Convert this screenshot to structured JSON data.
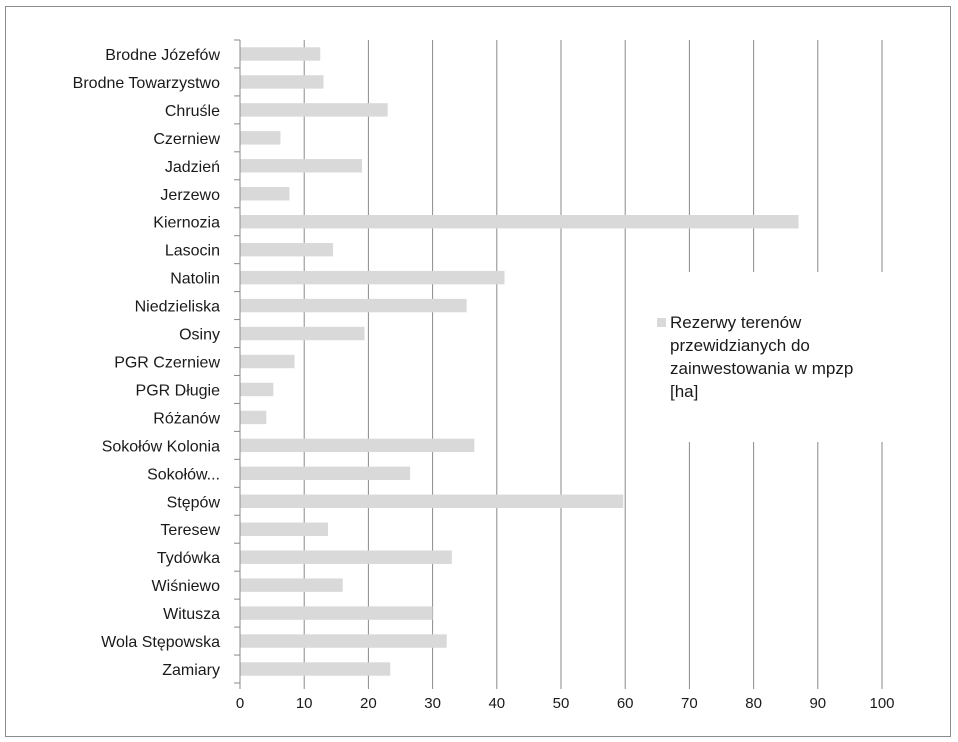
{
  "chart_data": {
    "type": "bar",
    "orientation": "horizontal",
    "categories": [
      "Brodne Józefów",
      "Brodne Towarzystwo",
      "Chruśle",
      "Czerniew",
      "Jadzień",
      "Jerzewo",
      "Kiernozia",
      "Lasocin",
      "Natolin",
      "Niedzieliska",
      "Osiny",
      "PGR Czerniew",
      "PGR Długie",
      "Różanów",
      "Sokołów Kolonia",
      "Sokołów...",
      "Stępów",
      "Teresew",
      "Tydówka",
      "Wiśniewo",
      "Witusza",
      "Wola Stępowska",
      "Zamiary"
    ],
    "series": [
      {
        "name": "Rezerwy terenów przewidzianych do zainwestowania w mpzp [ha]",
        "color": "#d9d9d9",
        "values": [
          12.5,
          13.0,
          23.0,
          6.3,
          19.0,
          7.7,
          87.0,
          14.5,
          41.2,
          35.3,
          19.4,
          8.5,
          5.2,
          4.1,
          36.5,
          26.5,
          59.7,
          13.7,
          33.0,
          16.0,
          30.0,
          32.2,
          23.4
        ]
      }
    ],
    "xlim": [
      0,
      100
    ],
    "x_ticks": [
      0,
      10,
      20,
      30,
      40,
      50,
      60,
      70,
      80,
      90,
      100
    ],
    "grid": "vertical",
    "legend_position": "right",
    "legend_lines": [
      "Rezerwy terenów",
      "przewidzianych do",
      "zainwestowania w mpzp",
      "[ha]"
    ],
    "title": "",
    "xlabel": "",
    "ylabel": ""
  }
}
